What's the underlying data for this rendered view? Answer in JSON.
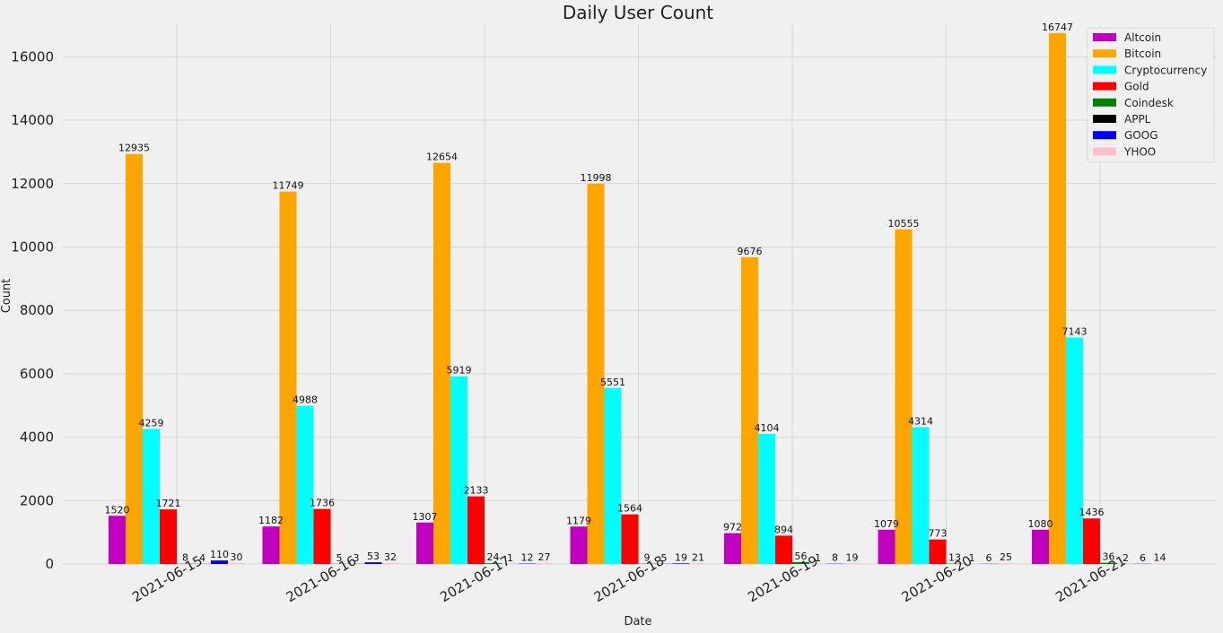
{
  "chart_data": {
    "type": "bar",
    "title": "Daily User Count",
    "xlabel": "Date",
    "ylabel": "Count",
    "ylim": [
      0,
      17000
    ],
    "yticks": [
      0,
      2000,
      4000,
      6000,
      8000,
      10000,
      12000,
      14000,
      16000
    ],
    "grid": true,
    "legend_position": "top-right",
    "categories": [
      "2021-06-15",
      "2021-06-16",
      "2021-06-17",
      "2021-06-18",
      "2021-06-19",
      "2021-06-20",
      "2021-06-21"
    ],
    "series": [
      {
        "name": "Altcoin",
        "color": "#bf00bf",
        "values": [
          1520,
          1182,
          1307,
          1179,
          972,
          1079,
          1080
        ]
      },
      {
        "name": "Bitcoin",
        "color": "#ffa500",
        "values": [
          12935,
          11749,
          12654,
          11998,
          9676,
          10555,
          16747
        ]
      },
      {
        "name": "Cryptocurrency",
        "color": "#00ffff",
        "values": [
          4259,
          4988,
          5919,
          5551,
          4104,
          4314,
          7143
        ]
      },
      {
        "name": "Gold",
        "color": "#ff0000",
        "values": [
          1721,
          1736,
          2133,
          1564,
          894,
          773,
          1436
        ]
      },
      {
        "name": "Coindesk",
        "color": "#008000",
        "values": [
          8,
          5,
          24,
          9,
          56,
          13,
          36
        ]
      },
      {
        "name": "APPL",
        "color": "#000000",
        "values": [
          4,
          3,
          1,
          5,
          1,
          1,
          2
        ]
      },
      {
        "name": "GOOG",
        "color": "#0000ff",
        "values": [
          110,
          53,
          12,
          19,
          8,
          6,
          6
        ]
      },
      {
        "name": "YHOO",
        "color": "#ffc0cb",
        "values": [
          30,
          32,
          27,
          21,
          19,
          25,
          14
        ]
      }
    ]
  }
}
